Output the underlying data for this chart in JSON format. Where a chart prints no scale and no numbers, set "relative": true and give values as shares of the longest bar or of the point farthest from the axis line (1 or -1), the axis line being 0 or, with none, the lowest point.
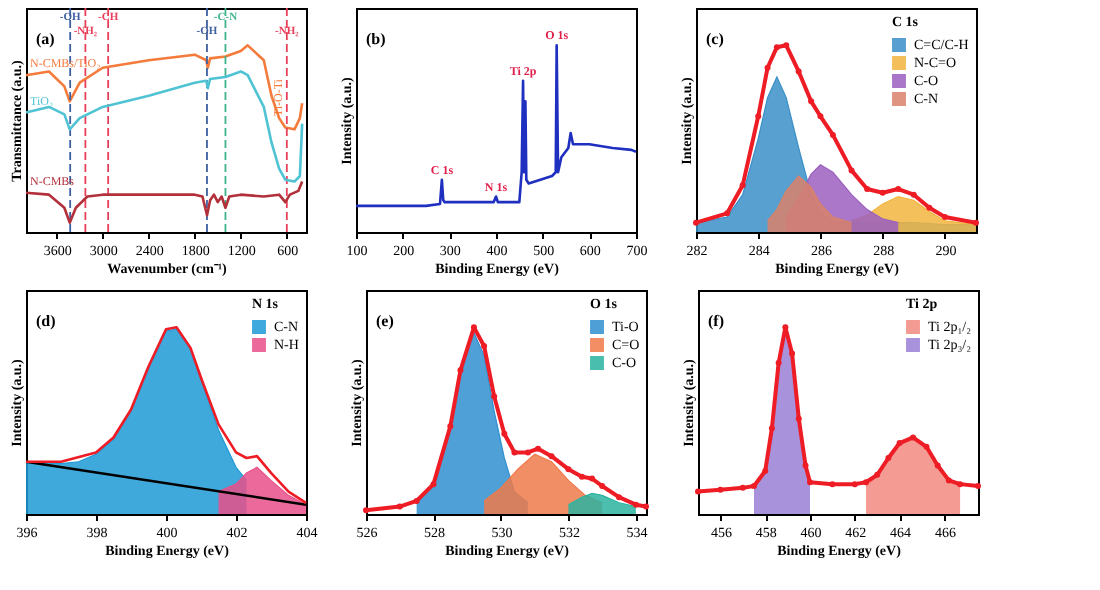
{
  "chart_data": [
    {
      "type": "line",
      "title": "(a)",
      "xlabel": "Wavenumber (cm⁻¹)",
      "ylabel": "Transmittance (a.u.)",
      "relative": true,
      "xlim": [
        4000,
        350
      ],
      "xticks": [
        3600,
        3000,
        2400,
        1800,
        1200,
        600
      ],
      "grid": false,
      "legend": false,
      "series": [
        {
          "name": "N-CMBs/TiO₂",
          "color": "#f47b3c",
          "x": [
            4000,
            3700,
            3500,
            3430,
            3300,
            3000,
            2400,
            1800,
            1650,
            1630,
            1600,
            1400,
            1200,
            1110,
            900,
            800,
            700,
            620,
            500,
            430,
            400
          ],
          "values": [
            0.84,
            0.86,
            0.78,
            0.7,
            0.8,
            0.88,
            0.92,
            0.95,
            0.92,
            0.88,
            0.93,
            0.94,
            0.97,
            1.0,
            0.92,
            0.73,
            0.61,
            0.56,
            0.55,
            0.61,
            0.69
          ]
        },
        {
          "name": "TiO₂",
          "color": "#4fc3d3",
          "x": [
            4000,
            3700,
            3500,
            3430,
            3300,
            3000,
            2400,
            1800,
            1650,
            1630,
            1600,
            1400,
            1200,
            1110,
            900,
            800,
            700,
            620,
            500,
            430,
            400
          ],
          "values": [
            0.64,
            0.67,
            0.63,
            0.55,
            0.61,
            0.67,
            0.73,
            0.8,
            0.81,
            0.77,
            0.82,
            0.83,
            0.86,
            0.84,
            0.67,
            0.48,
            0.34,
            0.28,
            0.27,
            0.3,
            0.58
          ]
        },
        {
          "name": "N-CMBs",
          "color": "#b2303a",
          "x": [
            4000,
            3700,
            3500,
            3430,
            3350,
            3200,
            3000,
            2400,
            1800,
            1700,
            1640,
            1600,
            1550,
            1500,
            1450,
            1400,
            1350,
            1200,
            900,
            700,
            620,
            560,
            450,
            400
          ],
          "values": [
            0.21,
            0.2,
            0.13,
            0.05,
            0.13,
            0.19,
            0.2,
            0.2,
            0.2,
            0.19,
            0.09,
            0.17,
            0.2,
            0.16,
            0.19,
            0.13,
            0.19,
            0.2,
            0.19,
            0.2,
            0.16,
            0.2,
            0.22,
            0.27
          ]
        }
      ],
      "ref_lines": [
        {
          "axis": "x",
          "value": 3424,
          "label": "-OH",
          "color": "#3d5f9e",
          "line_style": "dashed"
        },
        {
          "axis": "x",
          "value": 3226,
          "label": "-NH₂",
          "color": "#e8405a",
          "line_style": "dashed"
        },
        {
          "axis": "x",
          "value": 2929,
          "label": "-CH",
          "color": "#e8405a",
          "line_style": "dashed"
        },
        {
          "axis": "x",
          "value": 1641,
          "label": "-OH",
          "color": "#3d5f9e",
          "line_style": "dashed"
        },
        {
          "axis": "x",
          "value": 1400,
          "label": "-C-N",
          "color": "#3cb38a",
          "line_style": "dashed"
        },
        {
          "axis": "x",
          "value": 600,
          "label": "-NH₂",
          "color": "#e8405a",
          "line_style": "dashed"
        }
      ],
      "annotations": [
        {
          "text": "Ti-O-Ti",
          "x": 560,
          "y": 0.62
        }
      ]
    },
    {
      "type": "line",
      "title": "(b)",
      "xlabel": "Binding Energy (eV)",
      "ylabel": "Intensity (a.u.)",
      "relative": true,
      "xlim": [
        100,
        700
      ],
      "xticks": [
        100,
        200,
        300,
        400,
        500,
        600,
        700
      ],
      "grid": false,
      "legend": false,
      "series": [
        {
          "color": "#1f2fbf",
          "x": [
            100,
            250,
            280,
            284,
            287,
            290,
            395,
            400,
            404,
            450,
            455,
            458,
            460,
            463,
            465,
            470,
            520,
            528,
            530,
            533,
            540,
            555,
            560,
            565,
            600,
            650,
            690,
            700
          ],
          "values": [
            0.14,
            0.14,
            0.15,
            0.28,
            0.17,
            0.16,
            0.16,
            0.19,
            0.16,
            0.16,
            0.32,
            0.81,
            0.32,
            0.7,
            0.28,
            0.26,
            0.3,
            0.32,
            1.0,
            0.32,
            0.4,
            0.45,
            0.53,
            0.47,
            0.47,
            0.45,
            0.44,
            0.43
          ]
        }
      ],
      "annotations": [
        {
          "text": "C 1s",
          "x": 284,
          "y": 0.28
        },
        {
          "text": "N 1s",
          "x": 400,
          "y": 0.19
        },
        {
          "text": "Ti 2p",
          "x": 458,
          "y": 0.81
        },
        {
          "text": "O 1s",
          "x": 530,
          "y": 1.0
        }
      ]
    },
    {
      "type": "area",
      "title": "(c)",
      "xlabel": "Binding Energy (eV)",
      "ylabel": "Intensity (a.u.)",
      "relative": true,
      "xlim": [
        282,
        291
      ],
      "xticks": [
        282,
        284,
        286,
        288,
        290
      ],
      "grid": false,
      "legend": "top right",
      "legend_title": "C 1s",
      "series": [
        {
          "name": "C=C/C-H",
          "color": "#3a8fc8",
          "x": [
            282,
            283,
            283.5,
            284,
            284.3,
            284.6,
            284.9,
            285.3,
            285.7,
            286,
            286.4,
            287,
            288,
            289,
            290,
            291
          ],
          "values": [
            0.05,
            0.08,
            0.2,
            0.5,
            0.72,
            0.83,
            0.72,
            0.45,
            0.2,
            0.1,
            0.06,
            0.05,
            0.05,
            0.05,
            0.04,
            0.04
          ]
        },
        {
          "name": "N-C=O",
          "color": "#f2b540",
          "x": [
            287,
            287.5,
            288,
            288.5,
            289,
            289.5,
            290,
            291
          ],
          "values": [
            0.06,
            0.09,
            0.15,
            0.19,
            0.17,
            0.11,
            0.06,
            0.04
          ]
        },
        {
          "name": "C-O",
          "color": "#9b5fc0",
          "x": [
            284.9,
            285.3,
            285.7,
            286,
            286.4,
            287,
            287.5,
            288,
            288.5
          ],
          "values": [
            0.08,
            0.18,
            0.31,
            0.36,
            0.32,
            0.2,
            0.12,
            0.07,
            0.05
          ]
        },
        {
          "name": "C-N",
          "color": "#d9826b",
          "x": [
            284.3,
            284.6,
            284.9,
            285.3,
            285.7,
            286,
            286.4,
            287
          ],
          "values": [
            0.06,
            0.12,
            0.22,
            0.3,
            0.24,
            0.15,
            0.08,
            0.05
          ]
        },
        {
          "type": "line",
          "marker": "circle",
          "color": "#ee1c25",
          "x": [
            282,
            283,
            283.5,
            284,
            284.3,
            284.6,
            284.9,
            285.3,
            285.7,
            286,
            286.4,
            287,
            287.5,
            288,
            288.5,
            289,
            289.5,
            290,
            291
          ],
          "values": [
            0.05,
            0.1,
            0.25,
            0.62,
            0.88,
            0.99,
            1.0,
            0.86,
            0.7,
            0.62,
            0.52,
            0.33,
            0.23,
            0.21,
            0.23,
            0.2,
            0.13,
            0.08,
            0.05
          ]
        }
      ]
    },
    {
      "type": "area",
      "title": "(d)",
      "xlabel": "Binding Energy (eV)",
      "ylabel": "Intensity (a.u.)",
      "relative": true,
      "xlim": [
        396,
        404
      ],
      "xticks": [
        396,
        398,
        400,
        402,
        404
      ],
      "grid": false,
      "legend": "top right",
      "legend_title": "N 1s",
      "series": [
        {
          "name": "C-N",
          "color": "#1e9ad6",
          "x": [
            396,
            397,
            397.5,
            398,
            398.5,
            399,
            399.5,
            400,
            400.3,
            400.7,
            401,
            401.5,
            402,
            402.3
          ],
          "values": [
            0.28,
            0.27,
            0.28,
            0.32,
            0.4,
            0.55,
            0.78,
            0.98,
            0.99,
            0.88,
            0.72,
            0.45,
            0.25,
            0.18
          ]
        },
        {
          "name": "N-H",
          "color": "#e8508a",
          "x": [
            401.5,
            402,
            402.3,
            402.6,
            403,
            403.5,
            404
          ],
          "values": [
            0.12,
            0.16,
            0.22,
            0.25,
            0.18,
            0.1,
            0.05
          ]
        },
        {
          "type": "line",
          "color": "#000000",
          "x": [
            396,
            404
          ],
          "values": [
            0.28,
            0.05
          ]
        },
        {
          "type": "line",
          "color": "#ee1c25",
          "x": [
            396,
            397,
            398,
            398.5,
            399,
            399.5,
            400,
            400.3,
            400.7,
            401,
            401.5,
            402,
            402.3,
            402.6,
            403,
            403.5,
            404
          ],
          "values": [
            0.28,
            0.28,
            0.33,
            0.41,
            0.56,
            0.79,
            0.99,
            1.0,
            0.89,
            0.73,
            0.48,
            0.33,
            0.3,
            0.31,
            0.22,
            0.12,
            0.06
          ]
        }
      ]
    },
    {
      "type": "area",
      "title": "(e)",
      "xlabel": "Binding Energy (eV)",
      "ylabel": "Intensity (a.u.)",
      "relative": true,
      "xlim": [
        526,
        534.3
      ],
      "xticks": [
        526,
        528,
        530,
        532,
        534
      ],
      "grid": false,
      "legend": "top right",
      "legend_title": "O 1s",
      "series": [
        {
          "name": "Ti-O",
          "color": "#2f8fd0",
          "x": [
            527.5,
            528,
            528.5,
            528.8,
            529.2,
            529.5,
            529.8,
            530.1,
            530.4,
            530.8
          ],
          "values": [
            0.06,
            0.15,
            0.45,
            0.75,
            0.97,
            0.85,
            0.55,
            0.3,
            0.12,
            0.06
          ]
        },
        {
          "name": "C=O",
          "color": "#f07a4a",
          "x": [
            529.5,
            530,
            530.5,
            531,
            531.5,
            532,
            532.5,
            533
          ],
          "values": [
            0.07,
            0.14,
            0.24,
            0.32,
            0.28,
            0.18,
            0.1,
            0.06
          ]
        },
        {
          "name": "C-O",
          "color": "#2bb3a0",
          "x": [
            532,
            532.4,
            532.7,
            533,
            533.5,
            534
          ],
          "values": [
            0.05,
            0.09,
            0.11,
            0.1,
            0.06,
            0.04
          ]
        },
        {
          "type": "line",
          "marker": "circle",
          "color": "#ee1c25",
          "x": [
            526,
            527,
            527.5,
            528,
            528.5,
            528.8,
            529.2,
            529.5,
            529.8,
            530.1,
            530.4,
            530.8,
            531.1,
            531.5,
            532,
            532.4,
            532.7,
            533,
            533.5,
            534,
            534.3
          ],
          "values": [
            0.02,
            0.04,
            0.07,
            0.16,
            0.47,
            0.77,
            1.0,
            0.9,
            0.63,
            0.43,
            0.33,
            0.33,
            0.35,
            0.31,
            0.24,
            0.2,
            0.19,
            0.15,
            0.09,
            0.05,
            0.04
          ]
        }
      ]
    },
    {
      "type": "area",
      "title": "(f)",
      "xlabel": "Binding Energy (eV)",
      "ylabel": "Intensity (a.u.)",
      "relative": true,
      "xlim": [
        455,
        467.5
      ],
      "xticks": [
        456,
        458,
        460,
        462,
        464,
        466
      ],
      "grid": false,
      "legend": "top right",
      "legend_title": "Ti 2p",
      "series": [
        {
          "name": "Ti 2p₁/₂",
          "color": "#f28a80",
          "x": [
            462.5,
            463,
            463.5,
            464,
            464.6,
            465.2,
            465.7,
            466.2,
            466.7
          ],
          "values": [
            0.15,
            0.2,
            0.29,
            0.37,
            0.4,
            0.35,
            0.25,
            0.17,
            0.15
          ]
        },
        {
          "name": "Ti 2p₃/₂",
          "color": "#9a7fd6",
          "x": [
            457.5,
            458,
            458.3,
            458.6,
            458.9,
            459.2,
            459.5,
            459.8,
            460
          ],
          "values": [
            0.14,
            0.22,
            0.45,
            0.8,
            1.0,
            0.85,
            0.5,
            0.25,
            0.16
          ]
        },
        {
          "type": "line",
          "marker": "circle",
          "color": "#ee1c25",
          "x": [
            455,
            456,
            457,
            457.5,
            458,
            458.3,
            458.6,
            458.9,
            459.2,
            459.5,
            459.8,
            460,
            461,
            462,
            462.5,
            463,
            463.5,
            464,
            464.6,
            465.2,
            465.7,
            466.2,
            466.7,
            467.5
          ],
          "values": [
            0.12,
            0.13,
            0.14,
            0.15,
            0.23,
            0.46,
            0.81,
            1.0,
            0.86,
            0.51,
            0.26,
            0.17,
            0.16,
            0.16,
            0.17,
            0.21,
            0.3,
            0.38,
            0.41,
            0.36,
            0.26,
            0.18,
            0.16,
            0.15
          ]
        }
      ]
    }
  ]
}
